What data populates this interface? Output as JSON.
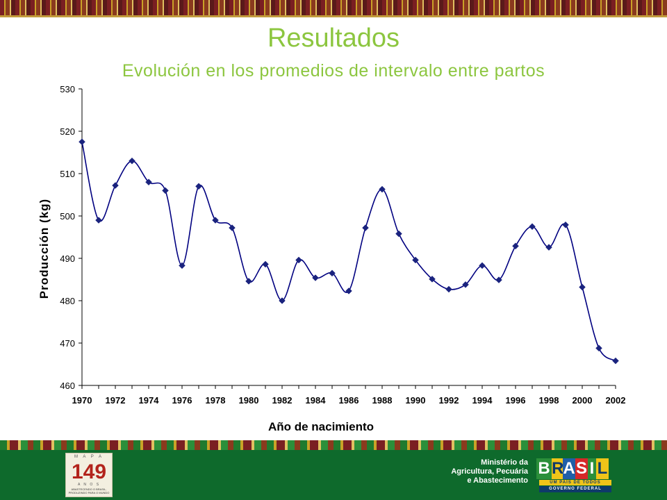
{
  "slide": {
    "title": "Resultados",
    "subtitle": "Evolución en los promedios de intervalo entre partos"
  },
  "chart_data": {
    "type": "line",
    "title": "",
    "xlabel": "Año de nacimiento",
    "ylabel": "Producción (kg)",
    "x": [
      1970,
      1971,
      1972,
      1973,
      1974,
      1975,
      1976,
      1977,
      1978,
      1979,
      1980,
      1981,
      1982,
      1983,
      1984,
      1985,
      1986,
      1987,
      1988,
      1989,
      1990,
      1991,
      1992,
      1993,
      1994,
      1995,
      1996,
      1997,
      1998,
      1999,
      2000,
      2001,
      2002
    ],
    "y": [
      517.5,
      499,
      507.2,
      513,
      508,
      506,
      488.3,
      507,
      499,
      497.2,
      484.6,
      488.6,
      480,
      489.6,
      485.4,
      486.5,
      482.3,
      497.2,
      506.3,
      495.8,
      489.6,
      485.1,
      482.7,
      483.8,
      488.3,
      484.9,
      492.9,
      497.5,
      492.6,
      497.9,
      483.2,
      468.8,
      465.8
    ],
    "xticks": [
      "1970",
      "1972",
      "1974",
      "1976",
      "1978",
      "1980",
      "1982",
      "1984",
      "1986",
      "1988",
      "1990",
      "1992",
      "1994",
      "1996",
      "1998",
      "2000",
      "2002"
    ],
    "yticks": [
      "460",
      "470",
      "480",
      "490",
      "500",
      "510",
      "520",
      "530"
    ],
    "xlim": [
      1970,
      2002
    ],
    "ylim": [
      460,
      530
    ],
    "grid": false,
    "legend": "none",
    "colors": {
      "line": "#000080",
      "marker": "#1a237e"
    }
  },
  "footer": {
    "logo_mapa": "M A P A",
    "logo_number": "149",
    "logo_anos": "A N O S",
    "logo_tagline": "ABASTECENDO O BRASIL, PRODUZINDO PARA O MUNDO",
    "ministry_line1": "Ministério da",
    "ministry_line2": "Agricultura, Pecuária",
    "ministry_line3": "e Abastecimento",
    "brasil_letters": [
      "B",
      "R",
      "A",
      "S",
      "I",
      "L"
    ],
    "brasil_tagline": "UM PAÍS DE TODOS",
    "brasil_gov": "GOVERNO FEDERAL"
  }
}
